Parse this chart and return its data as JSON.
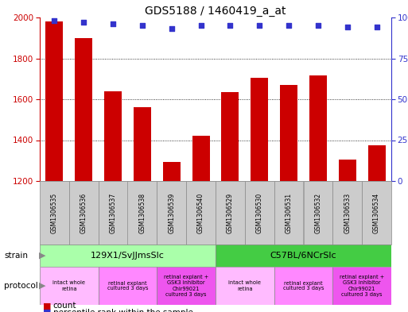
{
  "title": "GDS5188 / 1460419_a_at",
  "samples": [
    "GSM1306535",
    "GSM1306536",
    "GSM1306537",
    "GSM1306538",
    "GSM1306539",
    "GSM1306540",
    "GSM1306529",
    "GSM1306530",
    "GSM1306531",
    "GSM1306532",
    "GSM1306533",
    "GSM1306534"
  ],
  "bar_values": [
    1980,
    1900,
    1640,
    1560,
    1295,
    1420,
    1635,
    1705,
    1670,
    1715,
    1305,
    1375
  ],
  "dot_values": [
    98,
    97,
    96,
    95,
    93,
    95,
    95,
    95,
    95,
    95,
    94,
    94
  ],
  "ylim_left": [
    1200,
    2000
  ],
  "ylim_right": [
    0,
    100
  ],
  "yticks_left": [
    1200,
    1400,
    1600,
    1800,
    2000
  ],
  "yticks_right": [
    0,
    25,
    50,
    75,
    100
  ],
  "bar_color": "#cc0000",
  "dot_color": "#3333cc",
  "grid_color": "#aaaaaa",
  "strain_groups": [
    {
      "label": "129X1/SvJJmsSlc",
      "start": 0,
      "end": 5,
      "color": "#aaffaa"
    },
    {
      "label": "C57BL/6NCrSlc",
      "start": 6,
      "end": 11,
      "color": "#44cc44"
    }
  ],
  "protocol_groups": [
    {
      "label": "intact whole\nretina",
      "start": 0,
      "end": 1,
      "color": "#ffbbff"
    },
    {
      "label": "retinal explant\ncultured 3 days",
      "start": 2,
      "end": 3,
      "color": "#ff88ff"
    },
    {
      "label": "retinal explant +\nGSK3 inhibitor\nChir99021\ncultured 3 days",
      "start": 4,
      "end": 5,
      "color": "#ee55ee"
    },
    {
      "label": "intact whole\nretina",
      "start": 6,
      "end": 7,
      "color": "#ffbbff"
    },
    {
      "label": "retinal explant\ncultured 3 days",
      "start": 8,
      "end": 9,
      "color": "#ff88ff"
    },
    {
      "label": "retinal explant +\nGSK3 inhibitor\nChir99021\ncultured 3 days",
      "start": 10,
      "end": 11,
      "color": "#ee55ee"
    }
  ],
  "bg_color": "#ffffff",
  "tick_label_color_left": "#cc0000",
  "tick_label_color_right": "#3333cc",
  "sample_bg": "#cccccc",
  "sample_border": "#888888"
}
